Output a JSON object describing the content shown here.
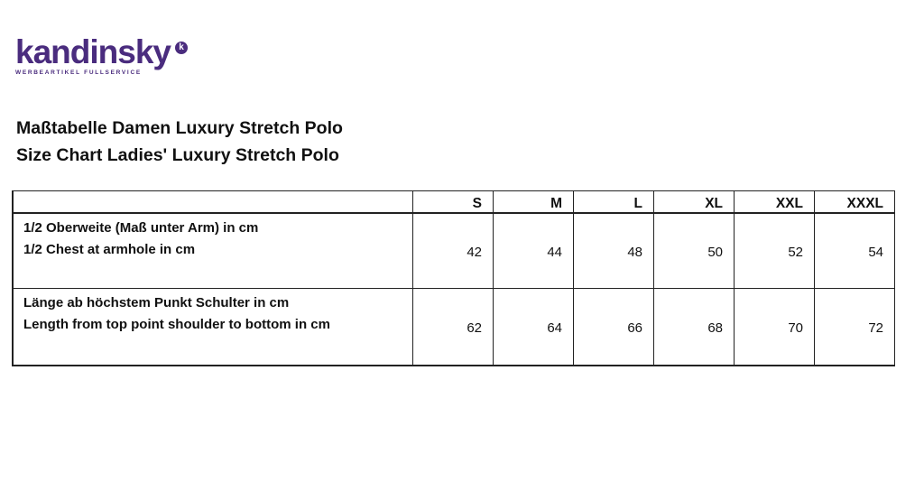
{
  "logo": {
    "name": "kandinsky",
    "mark": "k",
    "tagline": "WERBEARTIKEL FULLSERVICE",
    "color": "#4a2c7e"
  },
  "titles": {
    "de": "Maßtabelle Damen Luxury Stretch Polo",
    "en": "Size Chart Ladies' Luxury Stretch Polo"
  },
  "table": {
    "columns": [
      "",
      "S",
      "M",
      "L",
      "XL",
      "XXL",
      "XXXL"
    ],
    "rows": [
      {
        "label_de": "1/2 Oberweite (Maß unter Arm) in cm",
        "label_en": "1/2 Chest at armhole in cm",
        "values": [
          "42",
          "44",
          "48",
          "50",
          "52",
          "54"
        ]
      },
      {
        "label_de": "Länge ab höchstem Punkt Schulter in cm",
        "label_en": "Length from top point shoulder to bottom in cm",
        "values": [
          "62",
          "64",
          "66",
          "68",
          "70",
          "72"
        ]
      }
    ]
  }
}
